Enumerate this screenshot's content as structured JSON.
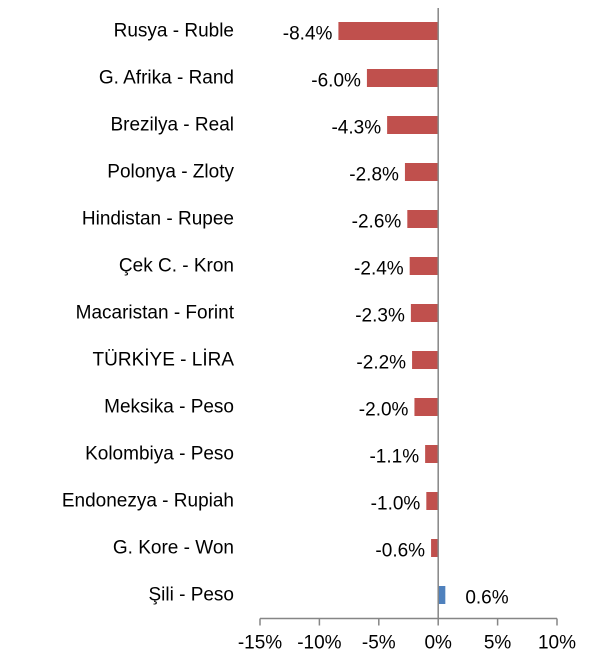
{
  "chart_data": {
    "type": "bar",
    "orientation": "horizontal",
    "title": "",
    "xlabel": "",
    "ylabel": "",
    "categories": [
      "Rusya - Ruble",
      "G. Afrika - Rand",
      "Brezilya - Real",
      "Polonya - Zloty",
      "Hindistan - Rupee",
      "Çek C. - Kron",
      "Macaristan - Forint",
      "TÜRKİYE - LİRA",
      "Meksika - Peso",
      "Kolombiya - Peso",
      "Endonezya - Rupiah",
      "G. Kore - Won",
      "Şili - Peso"
    ],
    "values": [
      -8.4,
      -6.0,
      -4.3,
      -2.8,
      -2.6,
      -2.4,
      -2.3,
      -2.2,
      -2.0,
      -1.1,
      -1.0,
      -0.6,
      0.6
    ],
    "value_labels": [
      "-8.4%",
      "-6.0%",
      "-4.3%",
      "-2.8%",
      "-2.6%",
      "-2.4%",
      "-2.3%",
      "-2.2%",
      "-2.0%",
      "-1.1%",
      "-1.0%",
      "-0.6%",
      "0.6%"
    ],
    "xlim": [
      -15,
      10
    ],
    "xticks": [
      -15,
      -10,
      -5,
      0,
      5,
      10
    ],
    "xtick_labels": [
      "-15%",
      "-10%",
      "-5%",
      "0%",
      "5%",
      "10%"
    ],
    "grid": false,
    "legend": "none",
    "colors": {
      "negative": "#C0504D",
      "positive": "#4F81BD",
      "axis": "#868686"
    }
  }
}
